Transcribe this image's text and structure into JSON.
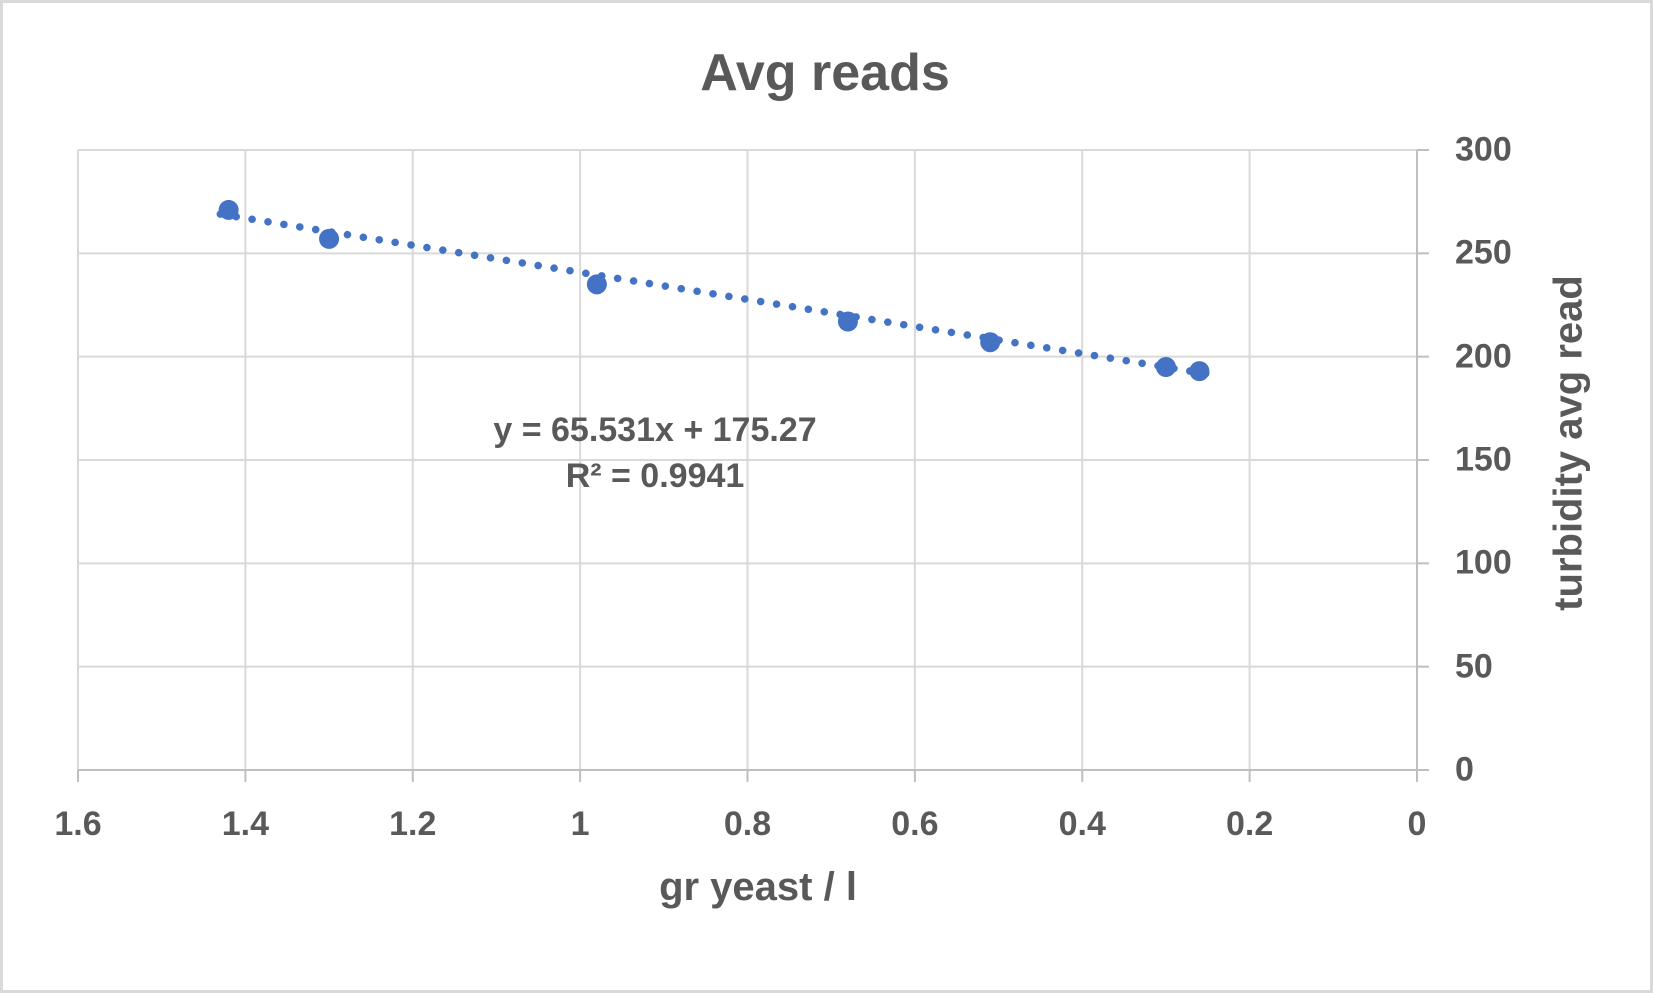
{
  "window": {
    "background": "#ffffff",
    "border_color": "#d9d9d9"
  },
  "chart_data": {
    "type": "scatter",
    "title": "Avg reads",
    "xlabel": "gr yeast / l",
    "ylabel": "turbidity avg read",
    "grid": true,
    "legend": "none",
    "x_axis": {
      "min": 0,
      "max": 1.6,
      "reversed": true,
      "tick_values": [
        1.6,
        1.4,
        1.2,
        1,
        0.8,
        0.6,
        0.4,
        0.2,
        0
      ],
      "tick_labels": [
        "1.6",
        "1.4",
        "1.2",
        "1",
        "0.8",
        "0.6",
        "0.4",
        "0.2",
        "0"
      ]
    },
    "y_axis": {
      "min": 0,
      "max": 300,
      "side": "right",
      "tick_values": [
        300,
        250,
        200,
        150,
        100,
        50,
        0
      ],
      "tick_labels": [
        "300",
        "250",
        "200",
        "150",
        "100",
        "50",
        "0"
      ]
    },
    "series": [
      {
        "name": "Avg reads",
        "marker": "circle",
        "marker_color": "#4472c4",
        "points": [
          {
            "x": 1.42,
            "y": 271
          },
          {
            "x": 1.3,
            "y": 257
          },
          {
            "x": 0.98,
            "y": 235
          },
          {
            "x": 0.68,
            "y": 217
          },
          {
            "x": 0.51,
            "y": 207
          },
          {
            "x": 0.3,
            "y": 195
          },
          {
            "x": 0.26,
            "y": 193
          }
        ]
      }
    ],
    "trendline": {
      "equation_label": "y = 65.531x + 175.27",
      "r2_label": "R² = 0.9941",
      "slope": 65.531,
      "intercept": 175.27,
      "x_start": 1.43,
      "x_end": 0.24,
      "style": "dotted",
      "color": "#4472c4"
    },
    "colors": {
      "text": "#595959",
      "gridline": "#d9d9d9",
      "axis_line": "#bfbfbf",
      "marker": "#4472c4"
    }
  }
}
